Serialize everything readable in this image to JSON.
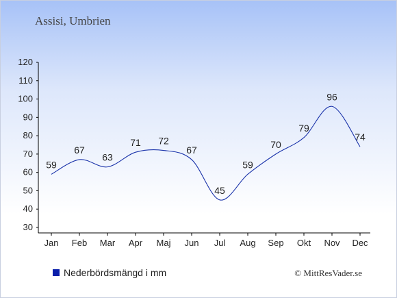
{
  "title": "Assisi, Umbrien",
  "credit": "© MittResVader.se",
  "colors": {
    "line": "#1a33aa",
    "legend_swatch": "#0a1faa",
    "axis": "#000000"
  },
  "chart_data": {
    "type": "line",
    "categories": [
      "Jan",
      "Feb",
      "Mar",
      "Apr",
      "Maj",
      "Jun",
      "Jul",
      "Aug",
      "Sep",
      "Okt",
      "Nov",
      "Dec"
    ],
    "series": [
      {
        "name": "Nederbördsmängd i mm",
        "values": [
          59,
          67,
          63,
          71,
          72,
          67,
          45,
          59,
          70,
          79,
          96,
          74
        ]
      }
    ],
    "ylim": [
      30,
      120
    ],
    "yticks": [
      30,
      40,
      50,
      60,
      70,
      80,
      90,
      100,
      110,
      120
    ],
    "legend": "bottom-left",
    "grid": false
  }
}
